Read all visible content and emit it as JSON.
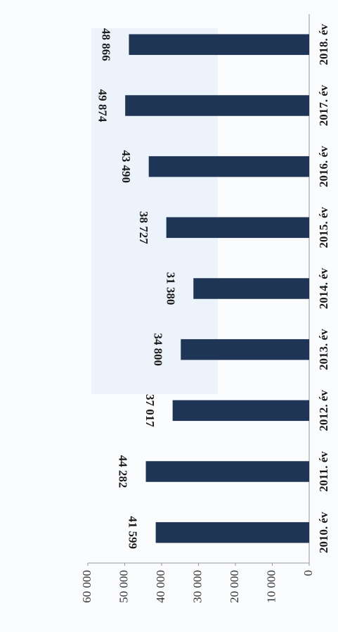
{
  "chart_data": {
    "type": "bar",
    "categories": [
      "2010. év",
      "2011. év",
      "2012. év",
      "2013. év",
      "2014. év",
      "2015. év",
      "2016. év",
      "2017. év",
      "2018. év"
    ],
    "values": [
      41599,
      44282,
      37017,
      34800,
      31380,
      38727,
      43490,
      49874,
      48866
    ],
    "value_labels": [
      "41 599",
      "44 282",
      "37 017",
      "34 800",
      "31 380",
      "38 727",
      "43 490",
      "49 874",
      "48 866"
    ],
    "color": "#1f3556",
    "ylim": [
      0,
      60000
    ],
    "yticks": [
      0,
      {
        "value": 10000,
        "label": "10 000"
      },
      {
        "value": 20000,
        "label": "20 000"
      },
      {
        "value": 30000,
        "label": "30 000"
      },
      {
        "value": 40000,
        "label": "40 000"
      },
      {
        "value": 50000,
        "label": "50 000"
      },
      {
        "value": 60000,
        "label": "60 000"
      }
    ],
    "grid": false
  }
}
